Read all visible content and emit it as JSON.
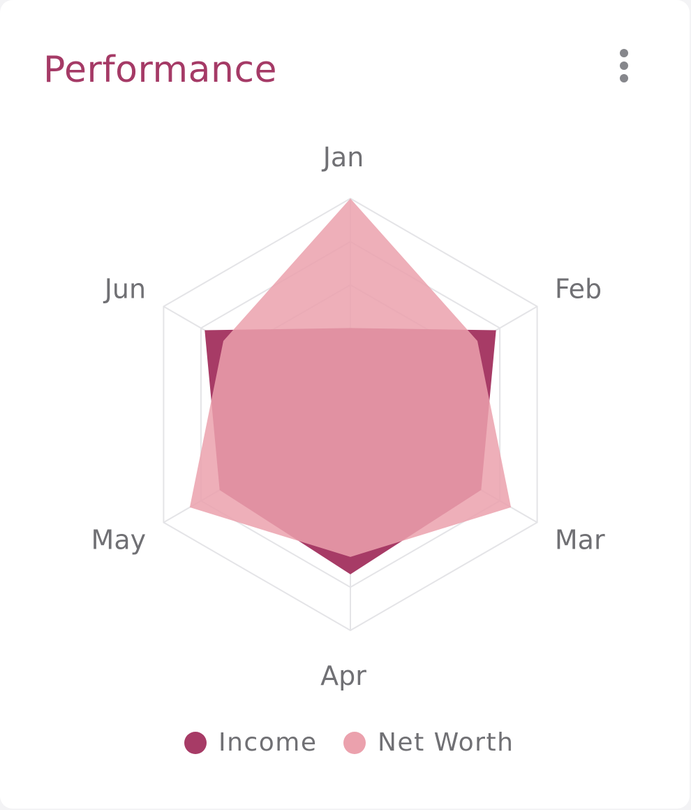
{
  "card": {
    "title": "Performance",
    "menu_icon": "more-vertical-icon"
  },
  "colors": {
    "title": "#a53a66",
    "grid": "#e4e4e7",
    "label": "#707074",
    "menu": "#86878c"
  },
  "chart_data": {
    "type": "radar",
    "categories": [
      "Jan",
      "Feb",
      "Mar",
      "Apr",
      "May",
      "Jun"
    ],
    "rmax": 5,
    "grid_rings": 5,
    "series": [
      {
        "name": "Income",
        "values": [
          2.0,
          3.9,
          3.5,
          3.7,
          3.5,
          3.9
        ],
        "color": "#a73b66",
        "opacity": 1
      },
      {
        "name": "Net Worth",
        "values": [
          5.0,
          3.4,
          4.3,
          3.3,
          4.3,
          3.4
        ],
        "color": "#eba1ad",
        "opacity": 0.85
      }
    ]
  }
}
